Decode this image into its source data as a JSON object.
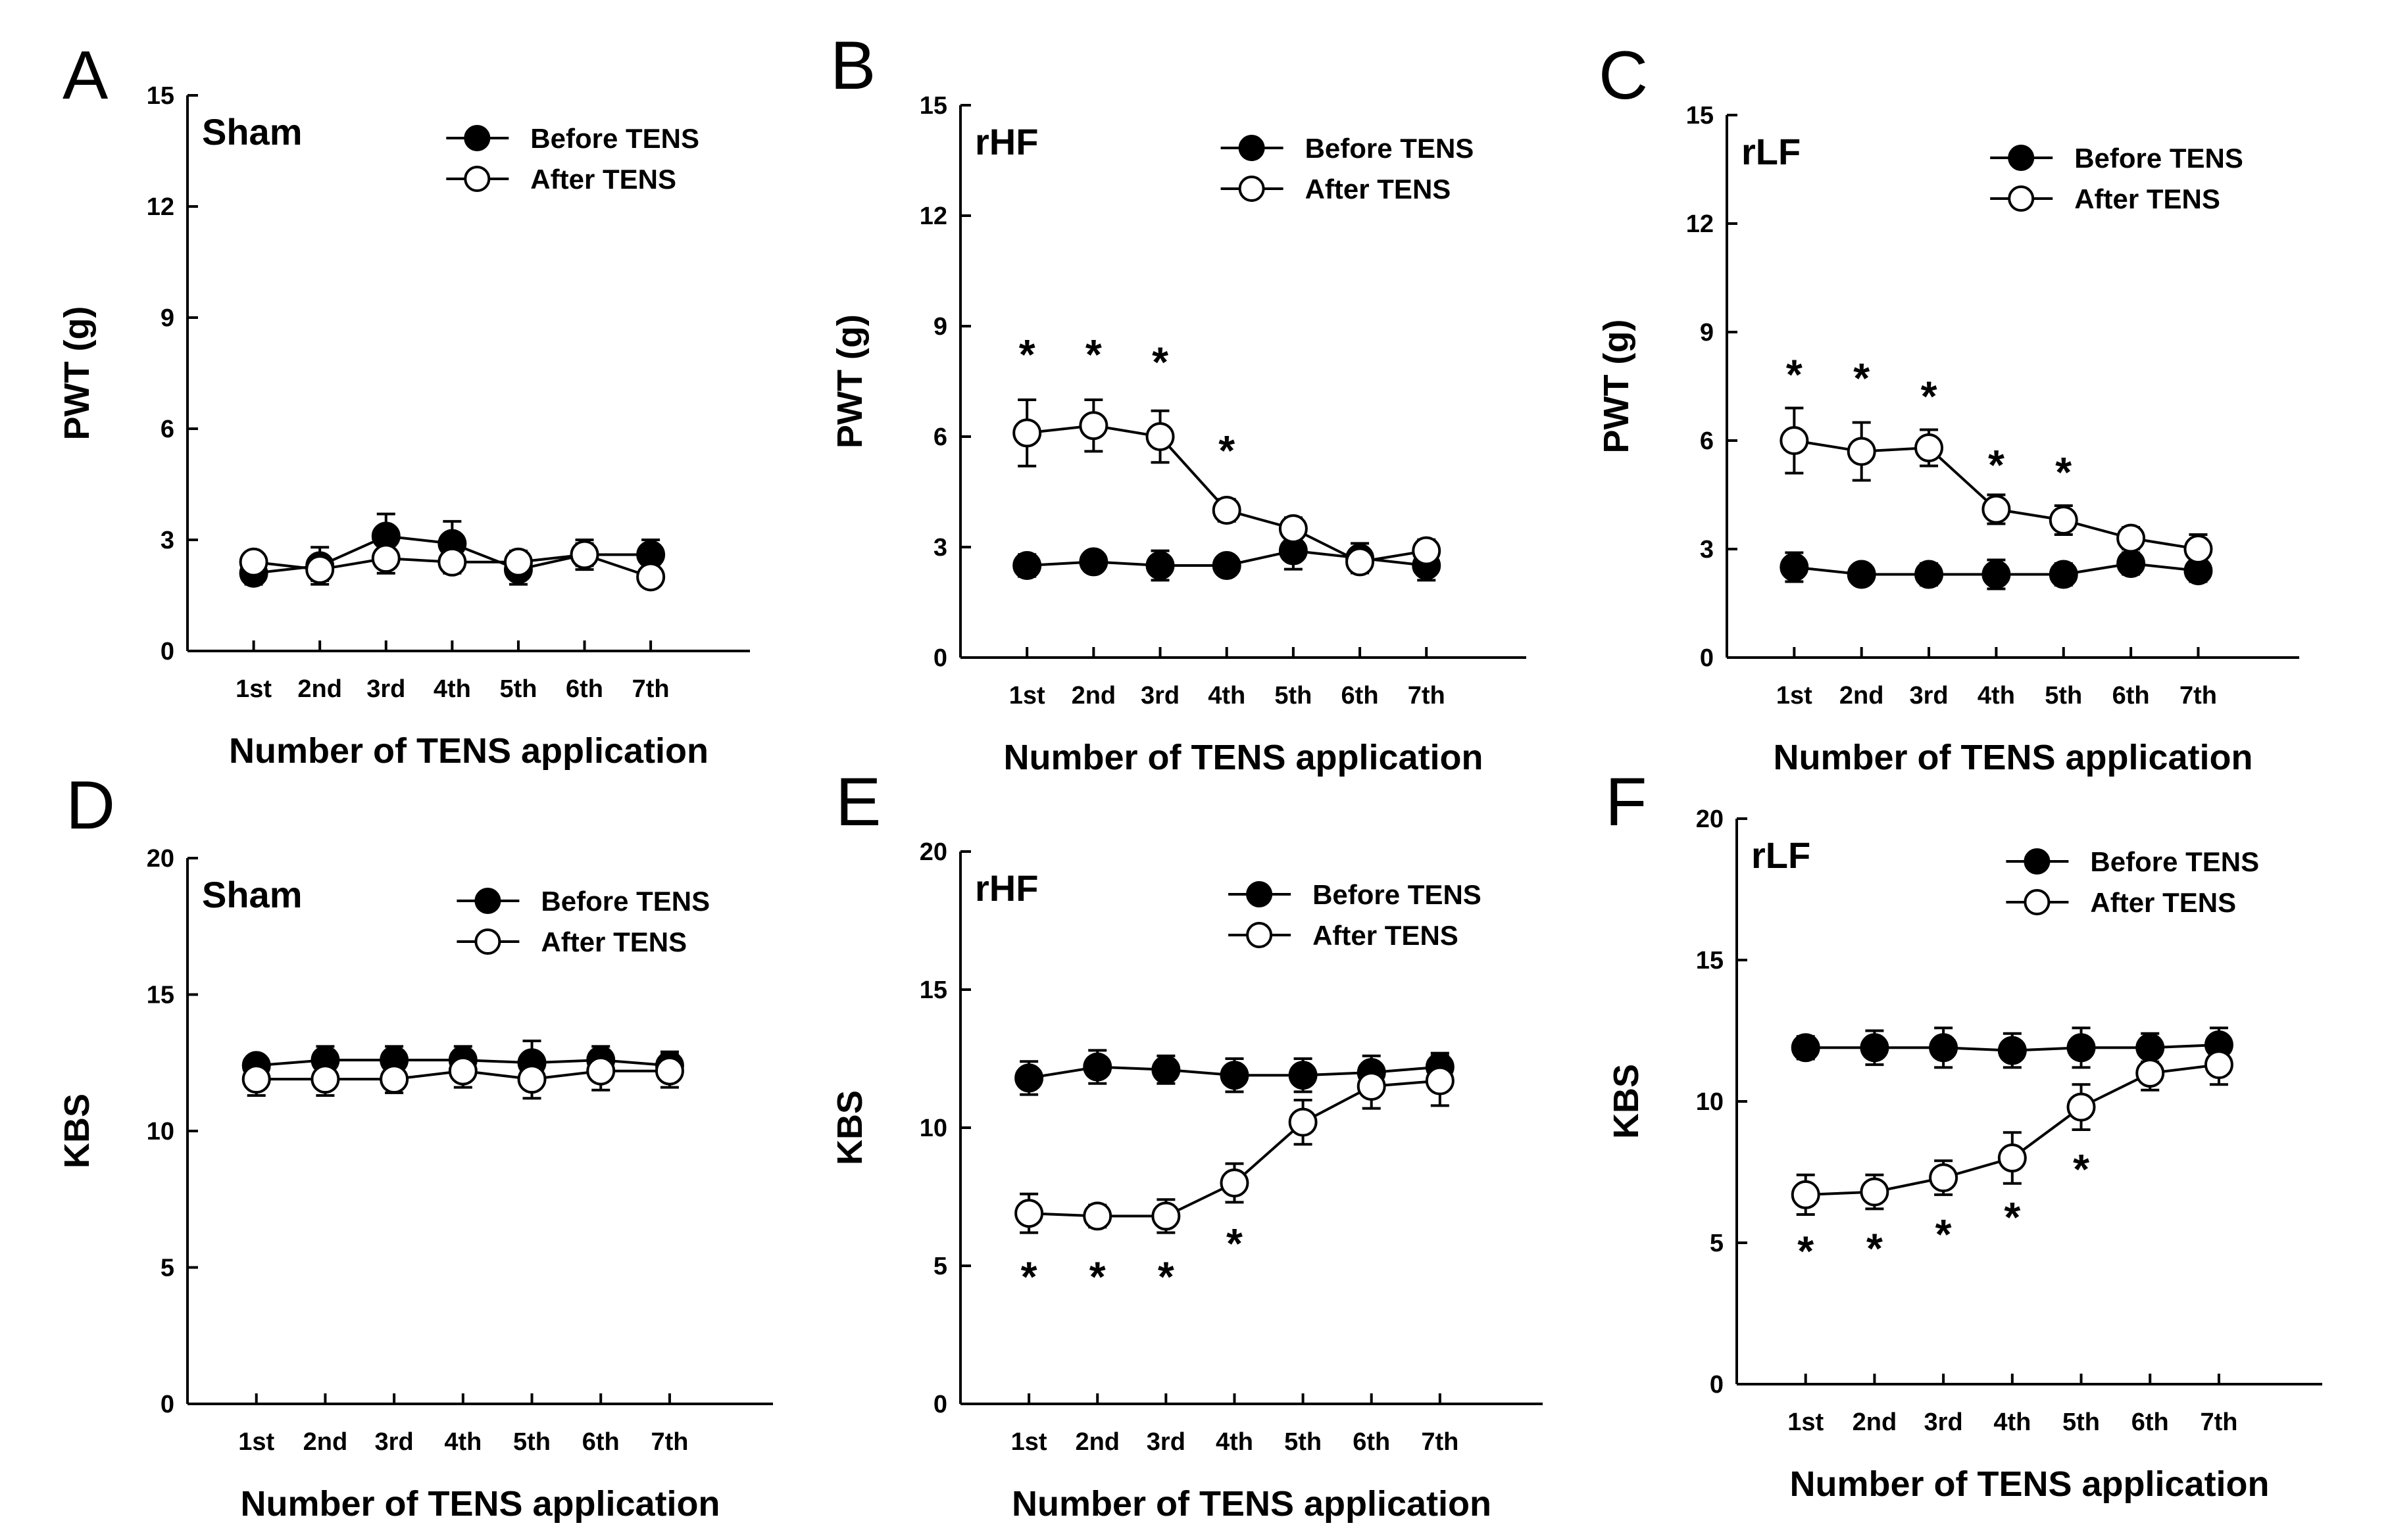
{
  "chart_data": [
    {
      "type": "line",
      "panel": "A",
      "group": "Sham",
      "ylabel": "PWT (g)",
      "xlabel": "Number of TENS application",
      "categories": [
        "1st",
        "2nd",
        "3rd",
        "4th",
        "5th",
        "6th",
        "7th"
      ],
      "ylim": [
        0,
        15
      ],
      "yticks": [
        0,
        3,
        6,
        9,
        12,
        15
      ],
      "legend": {
        "position": "top-right",
        "entries": [
          "Before TENS",
          "After TENS"
        ]
      },
      "series": [
        {
          "name": "Before TENS",
          "marker": "filled",
          "values": [
            2.1,
            2.3,
            3.1,
            2.9,
            2.2,
            2.6,
            2.6
          ],
          "errors": [
            0.3,
            0.5,
            0.6,
            0.6,
            0.4,
            0.4,
            0.4
          ]
        },
        {
          "name": "After TENS",
          "marker": "open",
          "values": [
            2.4,
            2.2,
            2.5,
            2.4,
            2.4,
            2.6,
            2.0
          ],
          "errors": [
            0.2,
            0.3,
            0.4,
            0.3,
            0.3,
            0.3,
            0.2
          ]
        }
      ],
      "significance": []
    },
    {
      "type": "line",
      "panel": "B",
      "group": "rHF",
      "ylabel": "PWT (g)",
      "xlabel": "Number of TENS application",
      "categories": [
        "1st",
        "2nd",
        "3rd",
        "4th",
        "5th",
        "6th",
        "7th"
      ],
      "ylim": [
        0,
        15
      ],
      "yticks": [
        0,
        3,
        6,
        9,
        12,
        15
      ],
      "legend": {
        "position": "top-right",
        "entries": [
          "Before TENS",
          "After TENS"
        ]
      },
      "series": [
        {
          "name": "Before TENS",
          "marker": "filled",
          "values": [
            2.5,
            2.6,
            2.5,
            2.5,
            2.9,
            2.7,
            2.5
          ],
          "errors": [
            0.3,
            0.2,
            0.4,
            0.2,
            0.5,
            0.4,
            0.4
          ]
        },
        {
          "name": "After TENS",
          "marker": "open",
          "values": [
            6.1,
            6.3,
            6.0,
            4.0,
            3.5,
            2.6,
            2.9
          ],
          "errors": [
            0.9,
            0.7,
            0.7,
            0.3,
            0.3,
            0.3,
            0.3
          ]
        }
      ],
      "significance": [
        {
          "label": "*",
          "category": "1st",
          "y": 8.3
        },
        {
          "label": "*",
          "category": "2nd",
          "y": 8.3
        },
        {
          "label": "*",
          "category": "3rd",
          "y": 8.1
        },
        {
          "label": "*",
          "category": "4th",
          "y": 5.7
        }
      ]
    },
    {
      "type": "line",
      "panel": "C",
      "group": "rLF",
      "ylabel": "PWT (g)",
      "xlabel": "Number of TENS application",
      "categories": [
        "1st",
        "2nd",
        "3rd",
        "4th",
        "5th",
        "6th",
        "7th"
      ],
      "ylim": [
        0,
        15
      ],
      "yticks": [
        0,
        3,
        6,
        9,
        12,
        15
      ],
      "legend": {
        "position": "top-right",
        "entries": [
          "Before TENS",
          "After TENS"
        ]
      },
      "series": [
        {
          "name": "Before TENS",
          "marker": "filled",
          "values": [
            2.5,
            2.3,
            2.3,
            2.3,
            2.3,
            2.6,
            2.4
          ],
          "errors": [
            0.4,
            0.2,
            0.3,
            0.4,
            0.3,
            0.3,
            0.3
          ]
        },
        {
          "name": "After TENS",
          "marker": "open",
          "values": [
            6.0,
            5.7,
            5.8,
            4.1,
            3.8,
            3.3,
            3.0
          ],
          "errors": [
            0.9,
            0.8,
            0.5,
            0.4,
            0.4,
            0.3,
            0.4
          ]
        }
      ],
      "significance": [
        {
          "label": "*",
          "category": "1st",
          "y": 7.9
        },
        {
          "label": "*",
          "category": "2nd",
          "y": 7.8
        },
        {
          "label": "*",
          "category": "3rd",
          "y": 7.3
        },
        {
          "label": "*",
          "category": "4th",
          "y": 5.4
        },
        {
          "label": "*",
          "category": "5th",
          "y": 5.2
        }
      ]
    },
    {
      "type": "line",
      "panel": "D",
      "group": "Sham",
      "ylabel": "KBS",
      "xlabel": "Number of TENS application",
      "categories": [
        "1st",
        "2nd",
        "3rd",
        "4th",
        "5th",
        "6th",
        "7th"
      ],
      "ylim": [
        0,
        20
      ],
      "yticks": [
        0,
        5,
        10,
        15,
        20
      ],
      "legend": {
        "position": "top-right",
        "entries": [
          "Before TENS",
          "After TENS"
        ]
      },
      "series": [
        {
          "name": "Before TENS",
          "marker": "filled",
          "values": [
            12.4,
            12.6,
            12.6,
            12.6,
            12.5,
            12.6,
            12.4
          ],
          "errors": [
            0.3,
            0.5,
            0.5,
            0.5,
            0.8,
            0.5,
            0.5
          ]
        },
        {
          "name": "After TENS",
          "marker": "open",
          "values": [
            11.9,
            11.9,
            11.9,
            12.2,
            11.9,
            12.2,
            12.2
          ],
          "errors": [
            0.6,
            0.6,
            0.5,
            0.6,
            0.7,
            0.7,
            0.6
          ]
        }
      ],
      "significance": []
    },
    {
      "type": "line",
      "panel": "E",
      "group": "rHF",
      "ylabel": "KBS",
      "xlabel": "Number of TENS application",
      "categories": [
        "1st",
        "2nd",
        "3rd",
        "4th",
        "5th",
        "6th",
        "7th"
      ],
      "ylim": [
        0,
        20
      ],
      "yticks": [
        0,
        5,
        10,
        15,
        20
      ],
      "legend": {
        "position": "top-right",
        "entries": [
          "Before TENS",
          "After TENS"
        ]
      },
      "series": [
        {
          "name": "Before TENS",
          "marker": "filled",
          "values": [
            11.8,
            12.2,
            12.1,
            11.9,
            11.9,
            12.0,
            12.2
          ],
          "errors": [
            0.6,
            0.6,
            0.5,
            0.6,
            0.6,
            0.6,
            0.5
          ]
        },
        {
          "name": "After TENS",
          "marker": "open",
          "values": [
            6.9,
            6.8,
            6.8,
            8.0,
            10.2,
            11.5,
            11.7
          ],
          "errors": [
            0.7,
            0.4,
            0.6,
            0.7,
            0.8,
            0.8,
            0.9
          ]
        }
      ],
      "significance": [
        {
          "label": "*",
          "category": "1st",
          "y": 4.7
        },
        {
          "label": "*",
          "category": "2nd",
          "y": 4.7
        },
        {
          "label": "*",
          "category": "3rd",
          "y": 4.7
        },
        {
          "label": "*",
          "category": "4th",
          "y": 5.9
        }
      ]
    },
    {
      "type": "line",
      "panel": "F",
      "group": "rLF",
      "ylabel": "KBS",
      "xlabel": "Number of TENS application",
      "categories": [
        "1st",
        "2nd",
        "3rd",
        "4th",
        "5th",
        "6th",
        "7th"
      ],
      "ylim": [
        0,
        20
      ],
      "yticks": [
        0,
        5,
        10,
        15,
        20
      ],
      "legend": {
        "position": "top-right",
        "entries": [
          "Before TENS",
          "After TENS"
        ]
      },
      "series": [
        {
          "name": "Before TENS",
          "marker": "filled",
          "values": [
            11.9,
            11.9,
            11.9,
            11.8,
            11.9,
            11.9,
            12.0
          ],
          "errors": [
            0.4,
            0.6,
            0.7,
            0.6,
            0.7,
            0.5,
            0.6
          ]
        },
        {
          "name": "After TENS",
          "marker": "open",
          "values": [
            6.7,
            6.8,
            7.3,
            8.0,
            9.8,
            11.0,
            11.3
          ],
          "errors": [
            0.7,
            0.6,
            0.6,
            0.9,
            0.8,
            0.6,
            0.7
          ]
        }
      ],
      "significance": [
        {
          "label": "*",
          "category": "1st",
          "y": 4.8
        },
        {
          "label": "*",
          "category": "2nd",
          "y": 4.9
        },
        {
          "label": "*",
          "category": "3rd",
          "y": 5.4
        },
        {
          "label": "*",
          "category": "4th",
          "y": 6.0
        },
        {
          "label": "*",
          "category": "5th",
          "y": 7.7
        }
      ]
    }
  ]
}
